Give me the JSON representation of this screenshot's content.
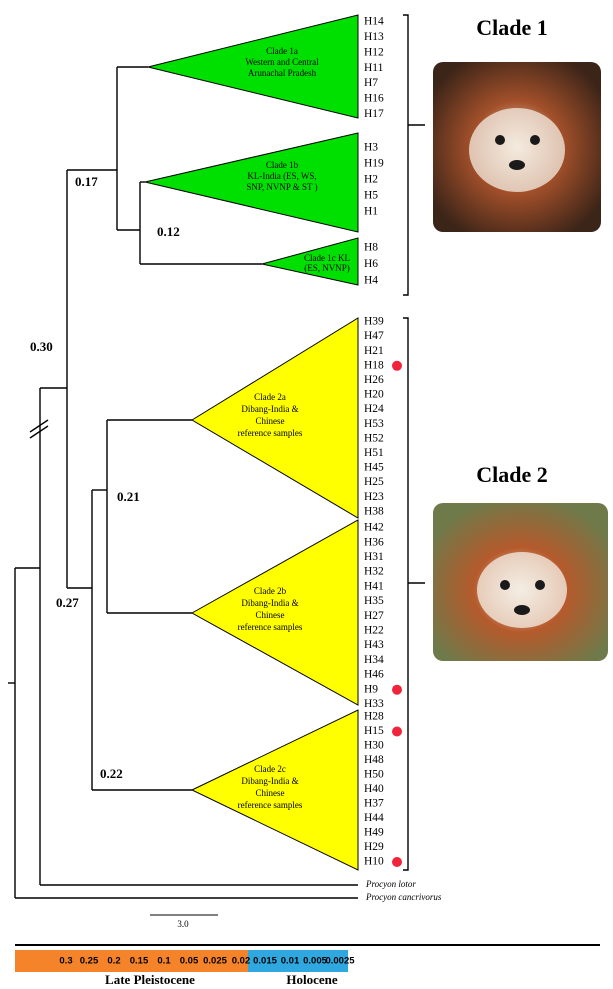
{
  "clade_groups": [
    {
      "title": "Clade 1"
    },
    {
      "title": "Clade 2"
    }
  ],
  "clades": [
    {
      "label_lines": [
        "Clade 1a",
        "Western and Central",
        "Arunachal Pradesh"
      ],
      "haplotypes": [
        "H14",
        "H13",
        "H12",
        "H11",
        "H7",
        "H16",
        "H17"
      ]
    },
    {
      "label_lines": [
        "Clade 1b",
        "KL-India (ES, WS,",
        "SNP, NVNP & ST )"
      ],
      "haplotypes": [
        "H3",
        "H19",
        "H2",
        "H5",
        "H1"
      ]
    },
    {
      "label_lines": [
        "Clade 1c KL",
        "(ES, NVNP)"
      ],
      "haplotypes": [
        "H8",
        "H6",
        "H4"
      ]
    },
    {
      "label_lines": [
        "Clade 2a",
        "Dibang-India &",
        "Chinese",
        "reference samples"
      ],
      "haplotypes": [
        "H39",
        "H47",
        "H21",
        "H18",
        "H26",
        "H20",
        "H24",
        "H53",
        "H52",
        "H51",
        "H45",
        "H25",
        "H23",
        "H38"
      ]
    },
    {
      "label_lines": [
        "Clade 2b",
        "Dibang-India &",
        "Chinese",
        "reference samples"
      ],
      "haplotypes": [
        "H42",
        "H36",
        "H31",
        "H32",
        "H41",
        "H35",
        "H27",
        "H22",
        "H43",
        "H34",
        "H46",
        "H9",
        "H33"
      ]
    },
    {
      "label_lines": [
        "Clade 2c",
        "Dibang-India &",
        "Chinese",
        "reference samples"
      ],
      "haplotypes": [
        "H28",
        "H15",
        "H30",
        "H48",
        "H50",
        "H40",
        "H37",
        "H44",
        "H49",
        "H29",
        "H10"
      ]
    }
  ],
  "node_support": [
    "0.17",
    "0.12",
    "0.30",
    "0.21",
    "0.27",
    "0.22"
  ],
  "outgroups": [
    "Procyon lotor",
    "Procyon cancrivorus"
  ],
  "scale_bar": "3.0",
  "time_axis": {
    "ticks": [
      "0.3",
      "0.25",
      "0.2",
      "0.15",
      "0.1",
      "0.05",
      "0.025",
      "0.02",
      "0.015",
      "0.01",
      "0.005",
      "0.0025"
    ],
    "periods": [
      "Late Pleistocene",
      "Holocene"
    ]
  }
}
